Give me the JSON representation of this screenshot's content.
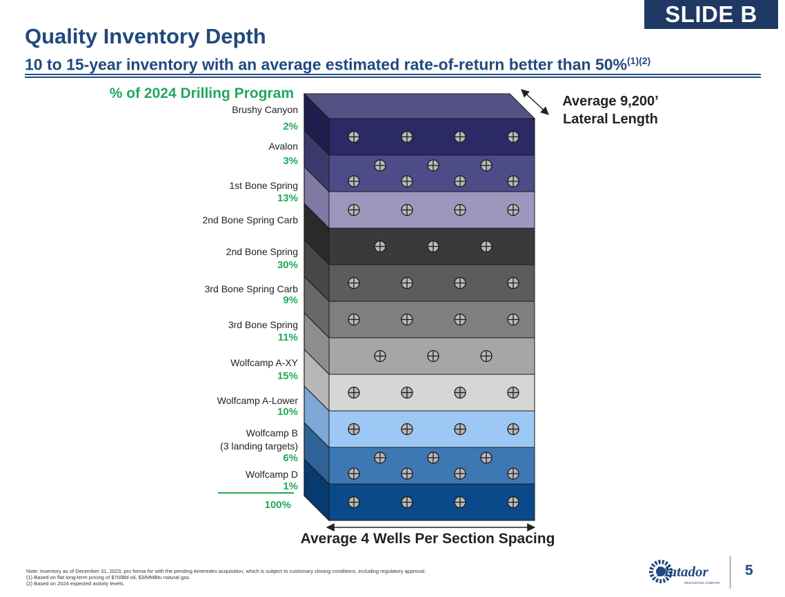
{
  "badge": "SLIDE B",
  "header": {
    "title": "Quality Inventory Depth",
    "subtitle": "10 to 15-year inventory with an average estimated rate-of-return better than 50%",
    "subtitle_refs": "(1)(2)"
  },
  "program_heading": "% of 2024 Drilling Program",
  "layers": [
    {
      "name": "Brushy Canyon",
      "pct": "2%",
      "color": "#2b2a66",
      "side": "#1e1d4d",
      "wells": 4,
      "rows": 1,
      "offset": false
    },
    {
      "name": "Avalon",
      "pct": "3%",
      "color": "#4d4b88",
      "side": "#3b3a6e",
      "wells": 4,
      "rows": 2,
      "offset": false
    },
    {
      "name": "1st Bone Spring",
      "pct": "13%",
      "color": "#9c98bd",
      "side": "#7e7aa3",
      "wells": 4,
      "rows": 1,
      "offset": false
    },
    {
      "name": "2nd Bone Spring Carb",
      "pct": "",
      "color": "#3a3a3a",
      "side": "#2a2a2a",
      "wells": 4,
      "rows": 1,
      "offset": true
    },
    {
      "name": "2nd Bone Spring",
      "pct": "30%",
      "color": "#5c5c5c",
      "side": "#474747",
      "wells": 4,
      "rows": 1,
      "offset": false
    },
    {
      "name": "3rd Bone Spring Carb",
      "pct": "9%",
      "color": "#7f7f7f",
      "side": "#686868",
      "wells": 4,
      "rows": 1,
      "offset": false
    },
    {
      "name": "3rd Bone Spring",
      "pct": "11%",
      "color": "#a6a6a6",
      "side": "#8e8e8e",
      "wells": 4,
      "rows": 1,
      "offset": true
    },
    {
      "name": "Wolfcamp A-XY",
      "pct": "15%",
      "color": "#d6d6d6",
      "side": "#b7b7b7",
      "wells": 4,
      "rows": 1,
      "offset": false
    },
    {
      "name": "Wolfcamp A-Lower",
      "pct": "10%",
      "color": "#9dc8f5",
      "side": "#7ea7d6",
      "wells": 4,
      "rows": 1,
      "offset": false
    },
    {
      "name": "Wolfcamp B",
      "name2": "(3 landing targets)",
      "pct": "6%",
      "color": "#3d78b4",
      "side": "#2f6296",
      "wells": 4,
      "rows": 2,
      "offset": false
    },
    {
      "name": "Wolfcamp D",
      "pct": "1%",
      "color": "#0a4a8a",
      "side": "#073a6e",
      "wells": 4,
      "rows": 1,
      "offset": false
    }
  ],
  "total_pct": "100%",
  "lateral_label": [
    "Average 9,200’",
    "Lateral Length"
  ],
  "spacing_label": "Average 4 Wells Per Section Spacing",
  "footnotes": [
    "Note: Inventory as of December 31, 2023, pro forma for with the pending Ameredev acquisition, which is subject to customary closing conditions, including regulatory approval.",
    "(1)    Based on flat long-term pricing of $70/Bbl oil, $3/MMBtu natural gas.",
    "(2)    Based on 2024 expected activity levels."
  ],
  "logo": {
    "text": "Matador",
    "tagline": "RESOURCES COMPANY",
    "color": "#1f497d"
  },
  "page_number": "5",
  "colors": {
    "accent_green": "#22a85a",
    "navy": "#1f497d",
    "badge": "#1f3864"
  }
}
